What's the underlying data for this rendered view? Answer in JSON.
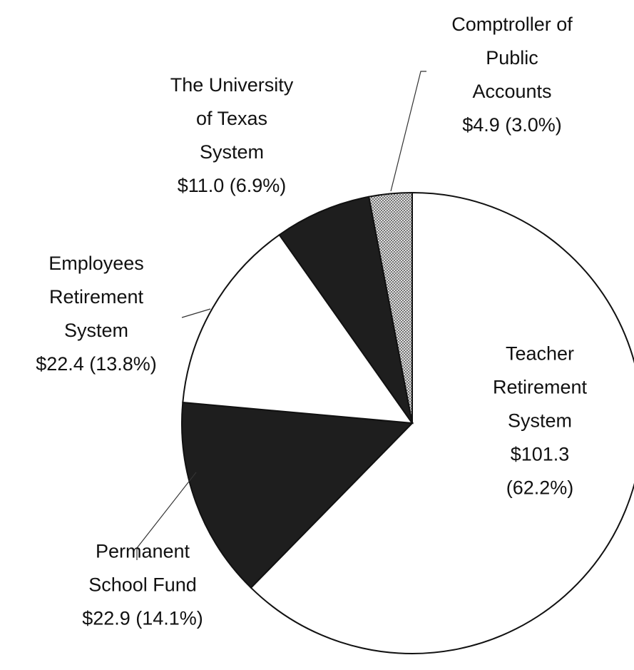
{
  "chart_data": {
    "type": "pie",
    "categories": [
      "Teacher\nRetirement\nSystem",
      "Permanent\nSchool Fund",
      "Employees\nRetirement\nSystem",
      "The University\nof Texas\nSystem",
      "Comptroller of\nPublic\nAccounts"
    ],
    "values": [
      101.3,
      22.9,
      22.4,
      11.0,
      4.9
    ],
    "value_labels": [
      "$101.3 (62.2%)",
      "$22.9 (14.1%)",
      "$22.4 (13.8%)",
      "$11.0 (6.9%)",
      "$4.9 (3.0%)"
    ],
    "colors": [
      "#ffffff",
      "#1e1e1e",
      "#ffffff",
      "#1e1e1e",
      "#bdbdbd"
    ]
  }
}
